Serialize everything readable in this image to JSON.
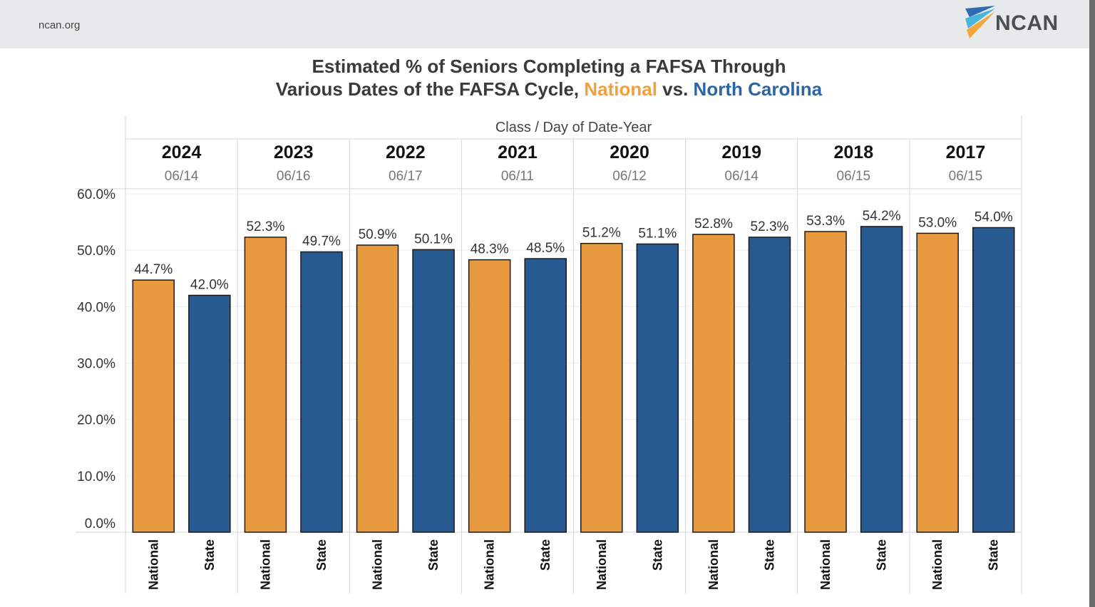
{
  "header": {
    "site": "ncan.org",
    "logo_text": "NCAN",
    "logo_colors": [
      "#2e6cb5",
      "#48b6d9",
      "#f3a63a"
    ]
  },
  "title": {
    "line1": "Estimated % of Seniors Completing a FAFSA Through",
    "line2_prefix": "Various Dates of the FAFSA Cycle, ",
    "national": "National",
    "vs": " vs. ",
    "state": "North Carolina"
  },
  "colors": {
    "national": "#e89a3e",
    "state": "#285a92"
  },
  "chart_data": {
    "type": "bar",
    "column_header": "Class  /  Day of Date-Year",
    "groups": [
      {
        "year": "2024",
        "date": "06/14",
        "national": 44.7,
        "state": 42.0
      },
      {
        "year": "2023",
        "date": "06/16",
        "national": 52.3,
        "state": 49.7
      },
      {
        "year": "2022",
        "date": "06/17",
        "national": 50.9,
        "state": 50.1
      },
      {
        "year": "2021",
        "date": "06/11",
        "national": 48.3,
        "state": 48.5
      },
      {
        "year": "2020",
        "date": "06/12",
        "national": 51.2,
        "state": 51.1
      },
      {
        "year": "2019",
        "date": "06/14",
        "national": 52.8,
        "state": 52.3
      },
      {
        "year": "2018",
        "date": "06/15",
        "national": 53.3,
        "state": 54.2
      },
      {
        "year": "2017",
        "date": "06/15",
        "national": 53.0,
        "state": 54.0
      }
    ],
    "categories": [
      "National",
      "State"
    ],
    "y_ticks": [
      0,
      10,
      20,
      30,
      40,
      50,
      60
    ],
    "ylim": [
      0,
      60
    ],
    "value_format": "percent_1dp",
    "grid": true
  }
}
